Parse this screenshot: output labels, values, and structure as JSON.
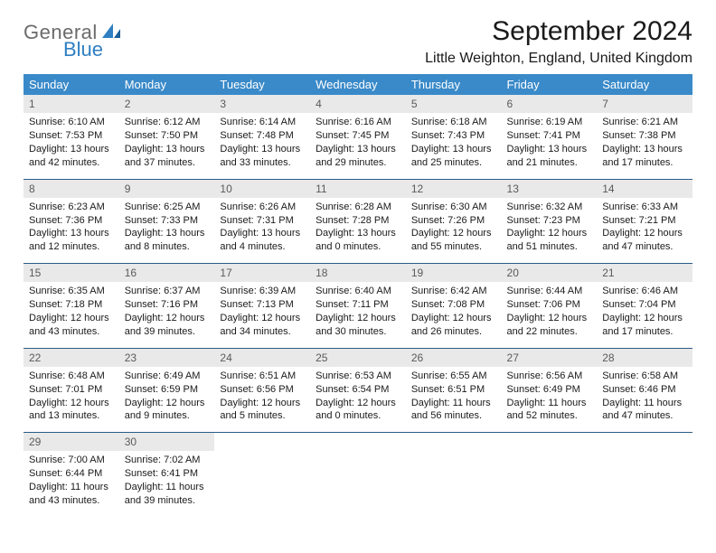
{
  "brand": {
    "part1": "General",
    "part2": "Blue",
    "color1": "#6b6b6b",
    "color2": "#2f7fc2"
  },
  "title": "September 2024",
  "location": "Little Weighton, England, United Kingdom",
  "header_bg": "#3a8ac9",
  "header_fg": "#ffffff",
  "row_divider": "#2a5c87",
  "daynum_bg": "#e9e9e9",
  "weekdays": [
    "Sunday",
    "Monday",
    "Tuesday",
    "Wednesday",
    "Thursday",
    "Friday",
    "Saturday"
  ],
  "weeks": [
    [
      {
        "n": "1",
        "sr": "6:10 AM",
        "ss": "7:53 PM",
        "dl": "13 hours and 42 minutes."
      },
      {
        "n": "2",
        "sr": "6:12 AM",
        "ss": "7:50 PM",
        "dl": "13 hours and 37 minutes."
      },
      {
        "n": "3",
        "sr": "6:14 AM",
        "ss": "7:48 PM",
        "dl": "13 hours and 33 minutes."
      },
      {
        "n": "4",
        "sr": "6:16 AM",
        "ss": "7:45 PM",
        "dl": "13 hours and 29 minutes."
      },
      {
        "n": "5",
        "sr": "6:18 AM",
        "ss": "7:43 PM",
        "dl": "13 hours and 25 minutes."
      },
      {
        "n": "6",
        "sr": "6:19 AM",
        "ss": "7:41 PM",
        "dl": "13 hours and 21 minutes."
      },
      {
        "n": "7",
        "sr": "6:21 AM",
        "ss": "7:38 PM",
        "dl": "13 hours and 17 minutes."
      }
    ],
    [
      {
        "n": "8",
        "sr": "6:23 AM",
        "ss": "7:36 PM",
        "dl": "13 hours and 12 minutes."
      },
      {
        "n": "9",
        "sr": "6:25 AM",
        "ss": "7:33 PM",
        "dl": "13 hours and 8 minutes."
      },
      {
        "n": "10",
        "sr": "6:26 AM",
        "ss": "7:31 PM",
        "dl": "13 hours and 4 minutes."
      },
      {
        "n": "11",
        "sr": "6:28 AM",
        "ss": "7:28 PM",
        "dl": "13 hours and 0 minutes."
      },
      {
        "n": "12",
        "sr": "6:30 AM",
        "ss": "7:26 PM",
        "dl": "12 hours and 55 minutes."
      },
      {
        "n": "13",
        "sr": "6:32 AM",
        "ss": "7:23 PM",
        "dl": "12 hours and 51 minutes."
      },
      {
        "n": "14",
        "sr": "6:33 AM",
        "ss": "7:21 PM",
        "dl": "12 hours and 47 minutes."
      }
    ],
    [
      {
        "n": "15",
        "sr": "6:35 AM",
        "ss": "7:18 PM",
        "dl": "12 hours and 43 minutes."
      },
      {
        "n": "16",
        "sr": "6:37 AM",
        "ss": "7:16 PM",
        "dl": "12 hours and 39 minutes."
      },
      {
        "n": "17",
        "sr": "6:39 AM",
        "ss": "7:13 PM",
        "dl": "12 hours and 34 minutes."
      },
      {
        "n": "18",
        "sr": "6:40 AM",
        "ss": "7:11 PM",
        "dl": "12 hours and 30 minutes."
      },
      {
        "n": "19",
        "sr": "6:42 AM",
        "ss": "7:08 PM",
        "dl": "12 hours and 26 minutes."
      },
      {
        "n": "20",
        "sr": "6:44 AM",
        "ss": "7:06 PM",
        "dl": "12 hours and 22 minutes."
      },
      {
        "n": "21",
        "sr": "6:46 AM",
        "ss": "7:04 PM",
        "dl": "12 hours and 17 minutes."
      }
    ],
    [
      {
        "n": "22",
        "sr": "6:48 AM",
        "ss": "7:01 PM",
        "dl": "12 hours and 13 minutes."
      },
      {
        "n": "23",
        "sr": "6:49 AM",
        "ss": "6:59 PM",
        "dl": "12 hours and 9 minutes."
      },
      {
        "n": "24",
        "sr": "6:51 AM",
        "ss": "6:56 PM",
        "dl": "12 hours and 5 minutes."
      },
      {
        "n": "25",
        "sr": "6:53 AM",
        "ss": "6:54 PM",
        "dl": "12 hours and 0 minutes."
      },
      {
        "n": "26",
        "sr": "6:55 AM",
        "ss": "6:51 PM",
        "dl": "11 hours and 56 minutes."
      },
      {
        "n": "27",
        "sr": "6:56 AM",
        "ss": "6:49 PM",
        "dl": "11 hours and 52 minutes."
      },
      {
        "n": "28",
        "sr": "6:58 AM",
        "ss": "6:46 PM",
        "dl": "11 hours and 47 minutes."
      }
    ],
    [
      {
        "n": "29",
        "sr": "7:00 AM",
        "ss": "6:44 PM",
        "dl": "11 hours and 43 minutes."
      },
      {
        "n": "30",
        "sr": "7:02 AM",
        "ss": "6:41 PM",
        "dl": "11 hours and 39 minutes."
      },
      null,
      null,
      null,
      null,
      null
    ]
  ],
  "labels": {
    "sunrise": "Sunrise:",
    "sunset": "Sunset:",
    "daylight": "Daylight:"
  }
}
